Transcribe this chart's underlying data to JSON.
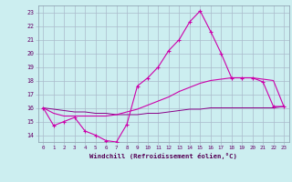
{
  "xlabel": "Windchill (Refroidissement éolien,°C)",
  "background_color": "#cceef0",
  "grid_color": "#aabbcc",
  "line_color": "#cc00aa",
  "line_color2": "#880088",
  "xlim": [
    -0.5,
    23.5
  ],
  "ylim": [
    13.5,
    23.5
  ],
  "yticks": [
    14,
    15,
    16,
    17,
    18,
    19,
    20,
    21,
    22,
    23
  ],
  "xticks": [
    0,
    1,
    2,
    3,
    4,
    5,
    6,
    7,
    8,
    9,
    10,
    11,
    12,
    13,
    14,
    15,
    16,
    17,
    18,
    19,
    20,
    21,
    22,
    23
  ],
  "hours": [
    0,
    1,
    2,
    3,
    4,
    5,
    6,
    7,
    8,
    9,
    10,
    11,
    12,
    13,
    14,
    15,
    16,
    17,
    18,
    19,
    20,
    21,
    22,
    23
  ],
  "windchill": [
    16.0,
    14.7,
    15.0,
    15.3,
    14.3,
    14.0,
    13.6,
    13.5,
    14.8,
    17.6,
    18.2,
    19.0,
    20.2,
    21.0,
    22.3,
    23.1,
    21.6,
    20.0,
    18.2,
    18.2,
    18.2,
    17.9,
    16.1,
    16.1
  ],
  "smooth1": [
    16.0,
    15.6,
    15.4,
    15.4,
    15.4,
    15.4,
    15.4,
    15.5,
    15.7,
    15.9,
    16.2,
    16.5,
    16.8,
    17.2,
    17.5,
    17.8,
    18.0,
    18.1,
    18.2,
    18.2,
    18.2,
    18.1,
    18.0,
    16.1
  ],
  "smooth2": [
    16.0,
    15.9,
    15.8,
    15.7,
    15.7,
    15.6,
    15.6,
    15.5,
    15.5,
    15.5,
    15.6,
    15.6,
    15.7,
    15.8,
    15.9,
    15.9,
    16.0,
    16.0,
    16.0,
    16.0,
    16.0,
    16.0,
    16.0,
    16.1
  ]
}
